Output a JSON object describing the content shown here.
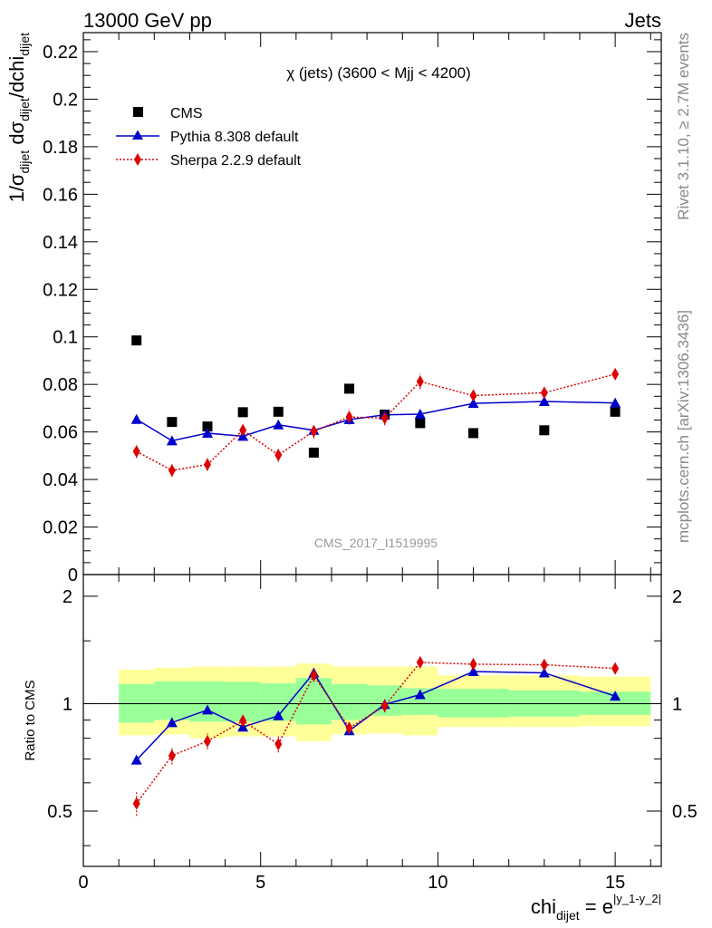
{
  "header": {
    "left": "13000 GeV pp",
    "right": "Jets"
  },
  "side_labels": {
    "rivet": "Rivet 3.1.10, ≥ 2.7M events",
    "mcplots": "mcplots.cern.ch [arXiv:1306.3436]"
  },
  "chart_data": {
    "type": "scatter",
    "title": "χ (jets) (3600 < Mjj < 4200)",
    "watermark": "CMS_2017_I1519995",
    "ylabel_parts": {
      "base": "1/σ",
      "sub1": "dijet",
      "mid": " dσ",
      "sub2": "dijet",
      "tail": "/dchi",
      "sub3": "dijet"
    },
    "xlabel_parts": {
      "base": "chi",
      "sub": "dijet",
      "mid": " = e",
      "sup": "|y_1-y_2|"
    },
    "ratio_ylabel": "Ratio to CMS",
    "xlim": [
      0,
      16.3
    ],
    "ylim": [
      0,
      0.228
    ],
    "ratio_ylim": [
      0.35,
      2.3
    ],
    "x_ticks": [
      0,
      5,
      10,
      15
    ],
    "y_ticks": [
      "0",
      "0.02",
      "0.04",
      "0.06",
      "0.08",
      "0.1",
      "0.12",
      "0.14",
      "0.16",
      "0.18",
      "0.2",
      "0.22"
    ],
    "ratio_ticks": [
      "0.5",
      "1",
      "2"
    ],
    "bin_edges": [
      1,
      2,
      3,
      4,
      5,
      6,
      7,
      8,
      9,
      10,
      12,
      14,
      16
    ],
    "x": [
      1.5,
      2.5,
      3.5,
      4.5,
      5.5,
      6.5,
      7.5,
      8.5,
      9.5,
      11,
      13,
      15
    ],
    "legend_position": "top-left",
    "series": [
      {
        "name": "CMS",
        "color": "#000000",
        "marker": "square",
        "values": [
          0.0985,
          0.0642,
          0.0623,
          0.0683,
          0.0685,
          0.0513,
          0.0782,
          0.0673,
          0.0637,
          0.0595,
          0.0607,
          0.0685
        ]
      },
      {
        "name": "Pythia 8.308 default",
        "color": "#0000cc",
        "marker": "triangle",
        "values": [
          0.0653,
          0.0563,
          0.0595,
          0.0582,
          0.063,
          0.0607,
          0.0652,
          0.0672,
          0.0675,
          0.072,
          0.0728,
          0.0722
        ],
        "errors": [
          0.0018,
          0.0013,
          0.0012,
          0.0012,
          0.0014,
          0.0016,
          0.0016,
          0.0015,
          0.0017,
          0.0012,
          0.001,
          0.001
        ]
      },
      {
        "name": "Sherpa 2.2.9 default",
        "color": "#dd0000",
        "marker": "diamond",
        "values": [
          0.0518,
          0.0438,
          0.0463,
          0.0607,
          0.0503,
          0.0603,
          0.0663,
          0.0658,
          0.0812,
          0.0753,
          0.0765,
          0.0843
        ],
        "errors": [
          0.0028,
          0.0027,
          0.0027,
          0.0029,
          0.0028,
          0.003,
          0.0032,
          0.003,
          0.0032,
          0.0024,
          0.0022,
          0.0022
        ]
      }
    ],
    "ratio": {
      "pythia": [
        0.695,
        0.885,
        0.96,
        0.86,
        0.925,
        1.22,
        0.84,
        0.995,
        1.06,
        1.23,
        1.22,
        1.05
      ],
      "pythia_err": [
        0.02,
        0.025,
        0.025,
        0.02,
        0.025,
        0.03,
        0.025,
        0.025,
        0.025,
        0.02,
        0.018,
        0.018
      ],
      "sherpa": [
        0.525,
        0.715,
        0.785,
        0.895,
        0.77,
        1.2,
        0.855,
        0.985,
        1.305,
        1.29,
        1.285,
        1.255
      ],
      "sherpa_err": [
        0.04,
        0.04,
        0.04,
        0.04,
        0.04,
        0.05,
        0.04,
        0.04,
        0.04,
        0.035,
        0.03,
        0.035
      ],
      "band_green": [
        [
          0.885,
          1.135
        ],
        [
          0.9,
          1.155
        ],
        [
          0.89,
          1.155
        ],
        [
          0.89,
          1.15
        ],
        [
          0.895,
          1.14
        ],
        [
          0.875,
          1.18
        ],
        [
          0.9,
          1.135
        ],
        [
          0.925,
          1.125
        ],
        [
          0.93,
          1.105
        ],
        [
          0.915,
          1.1
        ],
        [
          0.92,
          1.09
        ],
        [
          0.93,
          1.08
        ]
      ],
      "band_yellow": [
        [
          0.815,
          1.245
        ],
        [
          0.82,
          1.26
        ],
        [
          0.8,
          1.27
        ],
        [
          0.81,
          1.27
        ],
        [
          0.81,
          1.27
        ],
        [
          0.785,
          1.295
        ],
        [
          0.82,
          1.27
        ],
        [
          0.825,
          1.27
        ],
        [
          0.815,
          1.27
        ],
        [
          0.86,
          1.2
        ],
        [
          0.86,
          1.2
        ],
        [
          0.865,
          1.19
        ]
      ]
    }
  }
}
